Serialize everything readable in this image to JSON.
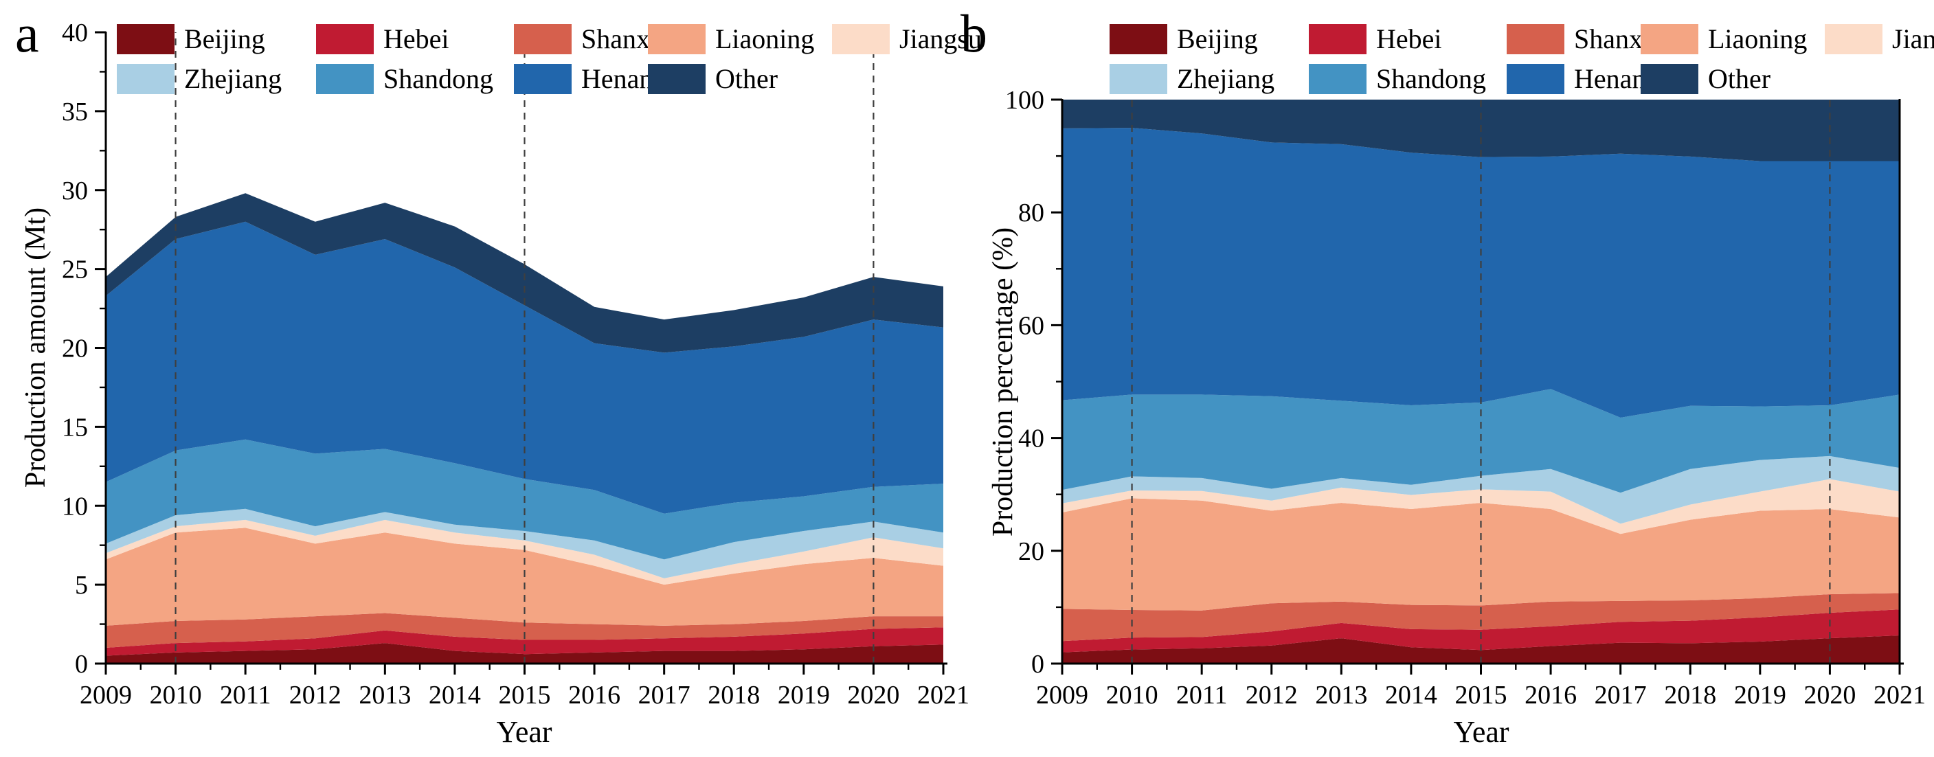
{
  "figure": {
    "panel_a_letter": "a",
    "panel_b_letter": "b",
    "panel_a_y_title": "Production amount (Mt)",
    "panel_b_y_title": "Production percentage (%)",
    "x_title": "Year"
  },
  "legend": {
    "items": [
      {
        "label": "Beijing",
        "color": "#7D0E14"
      },
      {
        "label": "Hebei",
        "color": "#C01B32"
      },
      {
        "label": "Shanxi",
        "color": "#D6604D"
      },
      {
        "label": "Liaoning",
        "color": "#F4A583"
      },
      {
        "label": "Jiangsu",
        "color": "#FCDCC8"
      },
      {
        "label": "Zhejiang",
        "color": "#A9CFE4"
      },
      {
        "label": "Shandong",
        "color": "#4393C3"
      },
      {
        "label": "Henan",
        "color": "#2166AC"
      },
      {
        "label": "Other",
        "color": "#1D3E63"
      }
    ]
  },
  "chart_data": [
    {
      "type": "area",
      "stacked": true,
      "panel": "a",
      "xlabel": "Year",
      "ylabel": "Production amount (Mt)",
      "ylim": [
        0,
        40
      ],
      "y_major_step": 5,
      "y_minor_step": 2.5,
      "y_tick_labels": [
        "0",
        "5",
        "10",
        "15",
        "20",
        "25",
        "30",
        "35",
        "40"
      ],
      "x": [
        2009,
        2010,
        2011,
        2012,
        2013,
        2014,
        2015,
        2016,
        2017,
        2018,
        2019,
        2020,
        2021
      ],
      "x_tick_labels": [
        "2009",
        "2010",
        "2011",
        "2012",
        "2013",
        "2014",
        "2015",
        "2016",
        "2017",
        "2018",
        "2019",
        "2020",
        "2021"
      ],
      "gridline_years": [
        2010,
        2015,
        2020
      ],
      "legend_position": "inside-top",
      "series": [
        {
          "name": "Beijing",
          "values": [
            0.5,
            0.7,
            0.8,
            0.9,
            1.3,
            0.8,
            0.6,
            0.7,
            0.8,
            0.8,
            0.9,
            1.1,
            1.2
          ]
        },
        {
          "name": "Hebei",
          "values": [
            0.5,
            0.6,
            0.6,
            0.7,
            0.8,
            0.9,
            0.9,
            0.8,
            0.8,
            0.9,
            1.0,
            1.1,
            1.1
          ]
        },
        {
          "name": "Shanxi",
          "values": [
            1.4,
            1.4,
            1.4,
            1.4,
            1.1,
            1.2,
            1.1,
            1.0,
            0.8,
            0.8,
            0.8,
            0.8,
            0.7
          ]
        },
        {
          "name": "Liaoning",
          "values": [
            4.2,
            5.6,
            5.8,
            4.6,
            5.1,
            4.7,
            4.6,
            3.7,
            2.6,
            3.2,
            3.6,
            3.7,
            3.2
          ]
        },
        {
          "name": "Jiangsu",
          "values": [
            0.4,
            0.4,
            0.5,
            0.5,
            0.8,
            0.7,
            0.6,
            0.7,
            0.4,
            0.6,
            0.8,
            1.3,
            1.1
          ]
        },
        {
          "name": "Zhejiang",
          "values": [
            0.6,
            0.7,
            0.7,
            0.6,
            0.5,
            0.5,
            0.6,
            0.9,
            1.2,
            1.4,
            1.3,
            1.0,
            1.0
          ]
        },
        {
          "name": "Shandong",
          "values": [
            3.9,
            4.1,
            4.4,
            4.6,
            4.0,
            3.9,
            3.3,
            3.2,
            2.9,
            2.5,
            2.2,
            2.2,
            3.1
          ]
        },
        {
          "name": "Henan",
          "values": [
            11.8,
            13.4,
            13.8,
            12.6,
            13.3,
            12.4,
            11.0,
            9.3,
            10.2,
            9.9,
            10.1,
            10.6,
            9.9
          ]
        },
        {
          "name": "Other",
          "values": [
            1.2,
            1.4,
            1.8,
            2.1,
            2.3,
            2.6,
            2.6,
            2.3,
            2.1,
            2.3,
            2.5,
            2.7,
            2.6
          ]
        }
      ]
    },
    {
      "type": "area",
      "stacked": true,
      "panel": "b",
      "xlabel": "Year",
      "ylabel": "Production percentage (%)",
      "ylim": [
        0,
        100
      ],
      "y_major_step": 20,
      "y_minor_step": 10,
      "y_tick_labels": [
        "0",
        "20",
        "40",
        "60",
        "80",
        "100"
      ],
      "x": [
        2009,
        2010,
        2011,
        2012,
        2013,
        2014,
        2015,
        2016,
        2017,
        2018,
        2019,
        2020,
        2021
      ],
      "x_tick_labels": [
        "2009",
        "2010",
        "2011",
        "2012",
        "2013",
        "2014",
        "2015",
        "2016",
        "2017",
        "2018",
        "2019",
        "2020",
        "2021"
      ],
      "gridline_years": [
        2010,
        2015,
        2020
      ],
      "legend_position": "above-top",
      "series": [
        {
          "name": "Beijing",
          "values": [
            2.0,
            2.5,
            2.7,
            3.2,
            4.5,
            2.9,
            2.4,
            3.1,
            3.7,
            3.6,
            3.9,
            4.5,
            5.0
          ]
        },
        {
          "name": "Hebei",
          "values": [
            2.0,
            2.1,
            2.0,
            2.5,
            2.7,
            3.2,
            3.6,
            3.5,
            3.7,
            4.0,
            4.3,
            4.5,
            4.6
          ]
        },
        {
          "name": "Shanxi",
          "values": [
            5.7,
            4.9,
            4.7,
            5.0,
            3.8,
            4.3,
            4.3,
            4.4,
            3.7,
            3.6,
            3.4,
            3.3,
            2.9
          ]
        },
        {
          "name": "Liaoning",
          "values": [
            17.1,
            19.8,
            19.5,
            16.4,
            17.5,
            17.0,
            18.2,
            16.4,
            11.9,
            14.3,
            15.5,
            15.1,
            13.4
          ]
        },
        {
          "name": "Jiangsu",
          "values": [
            1.6,
            1.4,
            1.7,
            1.8,
            2.7,
            2.5,
            2.4,
            3.1,
            1.8,
            2.7,
            3.4,
            5.3,
            4.6
          ]
        },
        {
          "name": "Zhejiang",
          "values": [
            2.4,
            2.5,
            2.3,
            2.1,
            1.7,
            1.8,
            2.4,
            4.0,
            5.5,
            6.3,
            5.6,
            4.1,
            4.2
          ]
        },
        {
          "name": "Shandong",
          "values": [
            15.9,
            14.5,
            14.8,
            16.4,
            13.7,
            14.1,
            13.0,
            14.2,
            13.3,
            11.2,
            9.5,
            9.0,
            13.0
          ]
        },
        {
          "name": "Henan",
          "values": [
            48.2,
            47.3,
            46.3,
            45.0,
            45.5,
            44.8,
            43.5,
            41.2,
            46.8,
            44.2,
            43.5,
            43.3,
            41.4
          ]
        },
        {
          "name": "Other",
          "values": [
            5.1,
            5.0,
            6.0,
            7.6,
            7.9,
            9.4,
            10.2,
            10.1,
            9.6,
            10.1,
            10.9,
            10.9,
            10.9
          ]
        }
      ]
    }
  ]
}
